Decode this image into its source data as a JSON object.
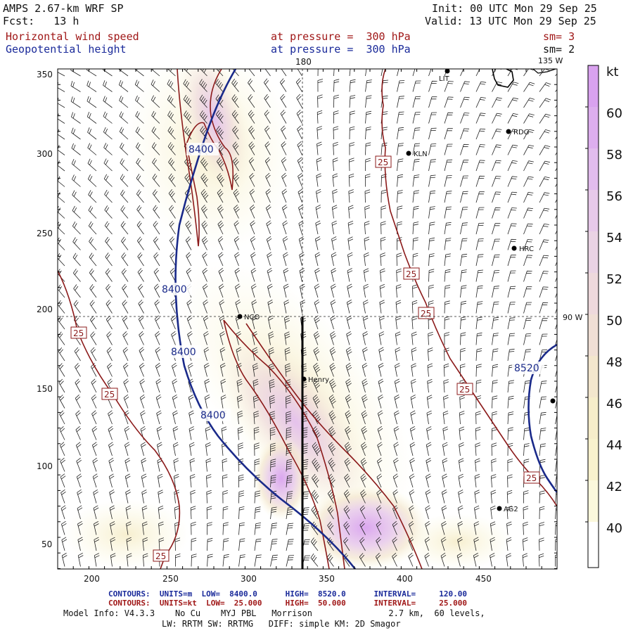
{
  "header": {
    "model": "AMPS 2.67-km WRF SP",
    "fcst": "Fcst:   13 h",
    "init": "Init: 00 UTC Mon 29 Sep 25",
    "valid": "Valid: 13 UTC Mon 29 Sep 25",
    "field1": "Horizontal wind speed",
    "field2": "Geopotential height",
    "level1": "at pressure =  300 hPa",
    "level2": "at pressure =  300 hPa",
    "sm1": "sm= 3",
    "sm2": "sm= 2"
  },
  "map": {
    "x_ticks": [
      "200",
      "250",
      "300",
      "350",
      "400",
      "450"
    ],
    "y_ticks": [
      "350",
      "300",
      "250",
      "200",
      "150",
      "100",
      "50"
    ],
    "meridian_180": "180",
    "meridian_135w": "135 W",
    "meridian_90w": "90 W",
    "stations": [
      "LIT",
      "RDG",
      "KLN",
      "HRC",
      "NCO",
      "Henry",
      "AG2"
    ],
    "height_labels": [
      "8400",
      "8400",
      "8400",
      "8400",
      "8520"
    ],
    "wind_labels": [
      "25",
      "25",
      "25",
      "25",
      "25",
      "25",
      "25",
      "25"
    ]
  },
  "colorbar": {
    "unit": "kt",
    "labels": [
      "60",
      "58",
      "56",
      "54",
      "52",
      "50",
      "48",
      "46",
      "44",
      "42",
      "40"
    ],
    "colors": [
      "#d9a2ef",
      "#ddaeee",
      "#e2bced",
      "#e7c9ea",
      "#ead3e4",
      "#eed9dc",
      "#f0dfd5",
      "#f3e6cd",
      "#f6edca",
      "#f8f2cd",
      "#fbf8dc",
      "#ffffff"
    ]
  },
  "footer": {
    "line1": "CONTOURS:  UNITS=m  LOW=  8400.0      HIGH=  8520.0      INTERVAL=     120.00",
    "line2": "CONTOURS:  UNITS=kt  LOW=  25.000     HIGH=  50.000      INTERVAL=     25.000",
    "line3": "Model Info: V4.3.3    No Cu    MYJ PBL   Morrison               2.7 km,  60 levels,",
    "line4": "LW: RRTM SW: RRTMG   DIFF: simple KM: 2D Smagor"
  }
}
